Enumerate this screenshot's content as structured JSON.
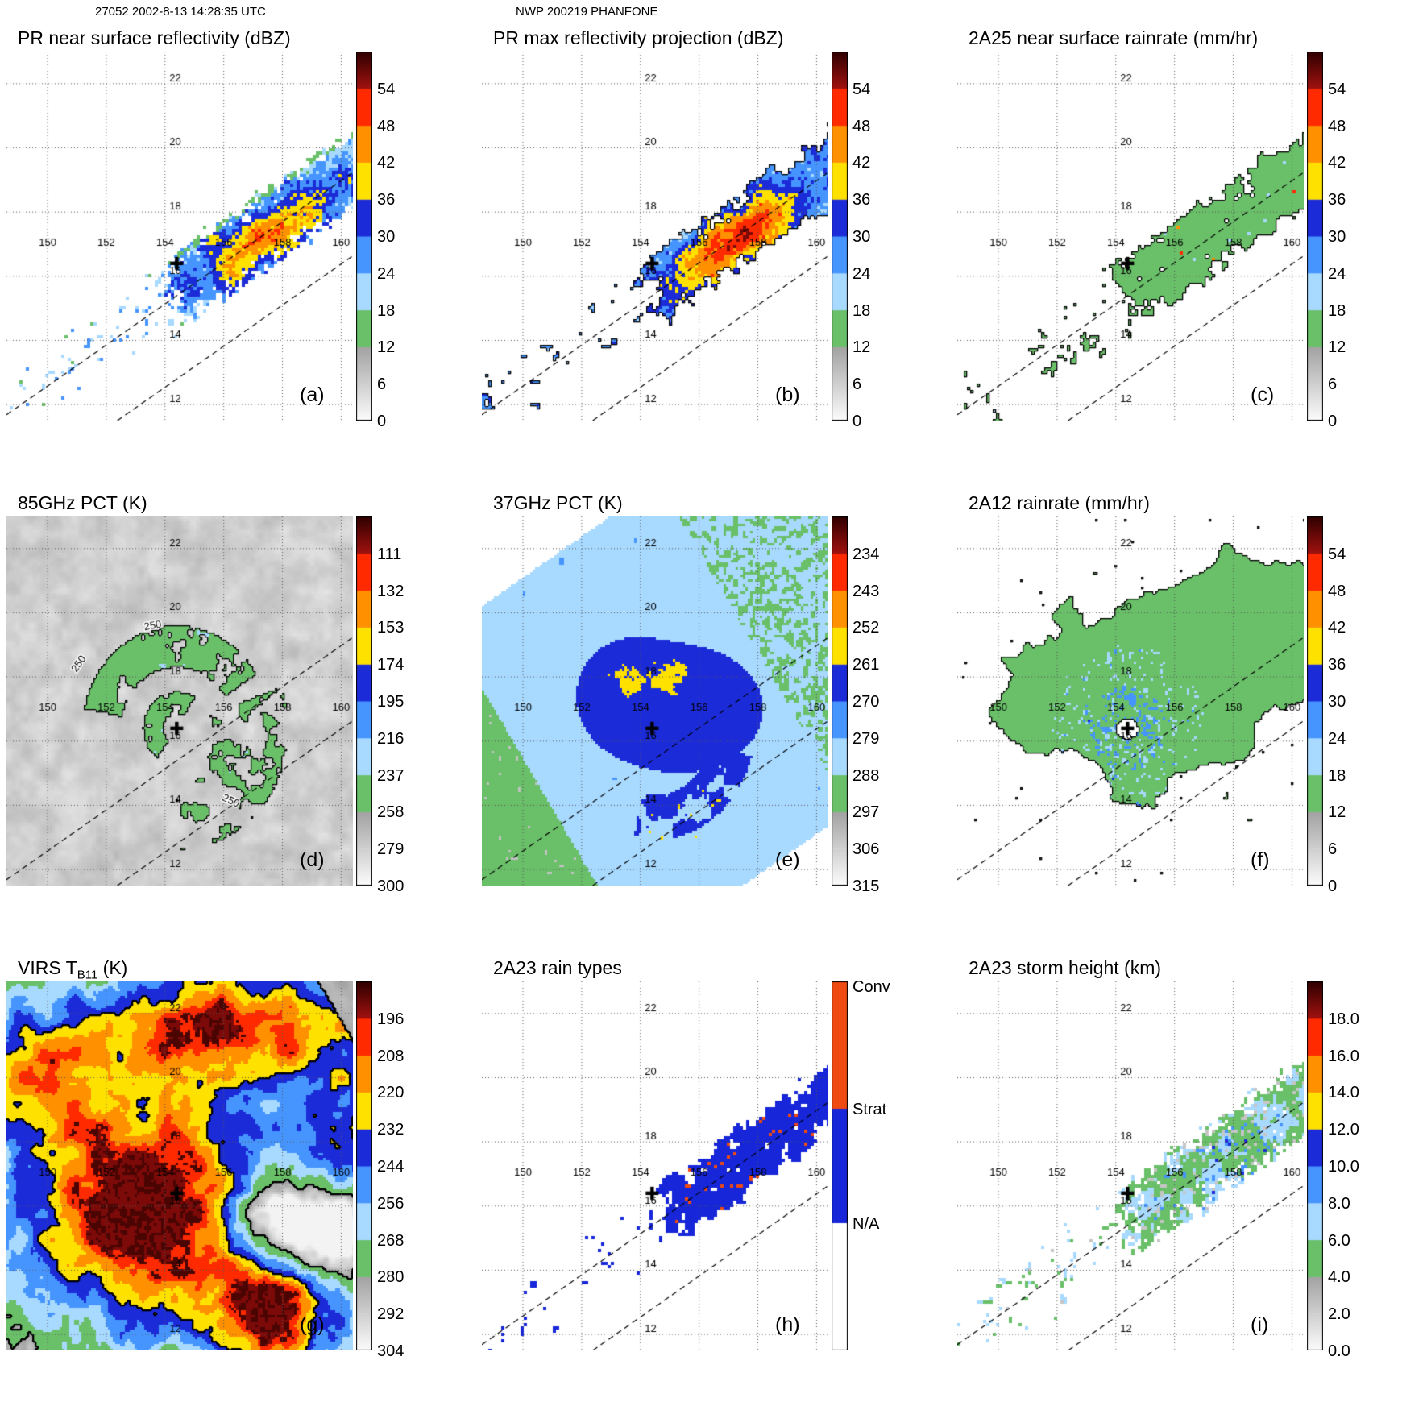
{
  "header": {
    "left": "27052 2002-8-13 14:28:35 UTC",
    "center": "NWP 200219 PHANFONE"
  },
  "grid": {
    "lon_labels": [
      "150",
      "152",
      "154",
      "156",
      "158",
      "160"
    ],
    "lon_values": [
      150,
      152,
      154,
      156,
      158,
      160
    ],
    "lat_labels": [
      "22",
      "20",
      "18",
      "16",
      "14",
      "12"
    ],
    "lat_values": [
      22,
      20,
      18,
      16,
      14,
      12
    ]
  },
  "chart_data": {
    "type": "heatmap",
    "description": "3x3 grid of TRMM satellite swath maps of typhoon PHANFONE, each with lat/lon graticule, storm-center cross, swath edge dashed lines and a vertical colorbar",
    "projection": {
      "lon_range": [
        148.6,
        160.4
      ],
      "lat_range": [
        11.5,
        23.0
      ]
    },
    "storm_center": {
      "lon": 154.4,
      "lat": 16.4
    },
    "swath": {
      "slope": 0.64,
      "dash_lines": [
        {
          "lon0": 154.1,
          "lat0": 15.2
        },
        {
          "lon0": 155.5,
          "lat0": 13.5
        }
      ]
    },
    "palette": {
      "segments": [
        "#ffffff",
        "#bdbdbd",
        "#6abf69",
        "#a8d9ff",
        "#4695ff",
        "#1c2bd8",
        "#ffe100",
        "#ff9000",
        "#ff2a00"
      ],
      "top": "#7c0a08"
    },
    "rain_type_colors": {
      "conv": "#ee4a12",
      "strat": "#1626d8"
    },
    "panels": [
      {
        "id": "a",
        "kind": "pr_z",
        "title": "PR near surface reflectivity (dBZ)",
        "letter": "(a)",
        "colorbar": {
          "type": "ticks",
          "ticks": [
            "54",
            "48",
            "42",
            "36",
            "30",
            "24",
            "18",
            "12",
            "6",
            "0"
          ]
        },
        "features": [
          "narrow PR swath of speckled 18-36 dBZ echoes",
          "convective core 36-50 dBZ near 157.5E 17.2N",
          "sparse echoes trailing to southwest"
        ]
      },
      {
        "id": "b",
        "kind": "pr_zmax",
        "title": "PR max reflectivity projection (dBZ)",
        "letter": "(b)",
        "colorbar": {
          "type": "ticks",
          "ticks": [
            "54",
            "48",
            "42",
            "36",
            "30",
            "24",
            "18",
            "12",
            "6",
            "0"
          ]
        },
        "features": [
          "filled blue echo blobs with black contours",
          "large yellow-orange 36-48 dBZ core region"
        ]
      },
      {
        "id": "c",
        "kind": "pr_rain",
        "title": "2A25 near surface rainrate (mm/hr)",
        "letter": "(c)",
        "colorbar": {
          "type": "ticks",
          "ticks": [
            "54",
            "48",
            "42",
            "36",
            "30",
            "24",
            "18",
            "12",
            "6",
            "0"
          ]
        },
        "features": [
          "mostly light rain 12-18 mm/hr (green) with black contours",
          "isolated heavy-rain red pixels along core streak"
        ]
      },
      {
        "id": "d",
        "kind": "pct85",
        "title": "85GHz PCT (K)",
        "letter": "(d)",
        "colorbar": {
          "type": "ticks",
          "ticks": [
            "111",
            "132",
            "153",
            "174",
            "195",
            "216",
            "237",
            "258",
            "279",
            "300"
          ]
        },
        "annotations": [
          {
            "text": "250",
            "lon": 151.15,
            "lat": 18.35,
            "rot": -55
          },
          {
            "text": "250",
            "lon": 153.6,
            "lat": 19.5,
            "rot": -10
          },
          {
            "text": "250",
            "lon": 156.2,
            "lat": 14.05,
            "rot": 25
          }
        ],
        "features": [
          "gray warm background 260-300K",
          "green 237-258K spiral rainbands with 250K contour",
          "small blue ice-scattering cells"
        ]
      },
      {
        "id": "e",
        "kind": "pct37",
        "title": "37GHz PCT (K)",
        "letter": "(e)",
        "colorbar": {
          "type": "ticks",
          "ticks": [
            "234",
            "243",
            "252",
            "261",
            "270",
            "279",
            "288",
            "297",
            "306",
            "315"
          ]
        },
        "features": [
          "wide TMI swath, pale blue background",
          "dark blue 261-270K cyclonic comma around center",
          "yellow 252-261K arc fragments",
          "green 288-297K at swath start (lower-left) and speckles upper-right"
        ]
      },
      {
        "id": "f",
        "kind": "tmi_rain",
        "title": "2A12 rainrate (mm/hr)",
        "letter": "(f)",
        "colorbar": {
          "type": "ticks",
          "ticks": [
            "54",
            "48",
            "42",
            "36",
            "30",
            "24",
            "18",
            "12",
            "6",
            "0"
          ]
        },
        "features": [
          "broad green light-rain shield with black outline",
          "white rain-free eye and gaps",
          "blue 18-30 mm/hr cells near center and rainbands"
        ]
      },
      {
        "id": "g",
        "kind": "virs",
        "title": "VIRS T_B11 (K)",
        "letter": "(g)",
        "colorbar": {
          "type": "ticks",
          "ticks": [
            "196",
            "208",
            "220",
            "232",
            "244",
            "256",
            "268",
            "280",
            "292",
            "304"
          ]
        },
        "features": [
          "very cold cloud tops below 208K (dark red/maroon) over storm and SE cluster",
          "yellow-orange 208-232K fringes",
          "blue 232-256K rings",
          "gray clear air at edges"
        ]
      },
      {
        "id": "h",
        "kind": "raintype",
        "title": "2A23 rain types",
        "letter": "(h)",
        "colorbar": {
          "type": "categories",
          "segments": [
            {
              "label": "Conv",
              "color": "#ee4a12",
              "frac": 0.345
            },
            {
              "label": "Strat",
              "color": "#1626d8",
              "frac": 0.31
            },
            {
              "label": "N/A",
              "color": "#ffffff",
              "frac": 0.345
            }
          ]
        },
        "features": [
          "stratiform (blue) dominates eastern half of PR swath",
          "scattered convective (orange-red) pixels"
        ]
      },
      {
        "id": "i",
        "kind": "stormht",
        "title": "2A23 storm height (km)",
        "letter": "(i)",
        "colorbar": {
          "type": "ticks",
          "ticks": [
            "18.0",
            "16.0",
            "14.0",
            "12.0",
            "10.0",
            "8.0",
            "6.0",
            "4.0",
            "2.0",
            "0.0"
          ]
        },
        "features": [
          "storm heights mostly 4-6 km (green) with 2-4 km gray and 6-10 km blue speckles in PR swath"
        ]
      }
    ]
  }
}
